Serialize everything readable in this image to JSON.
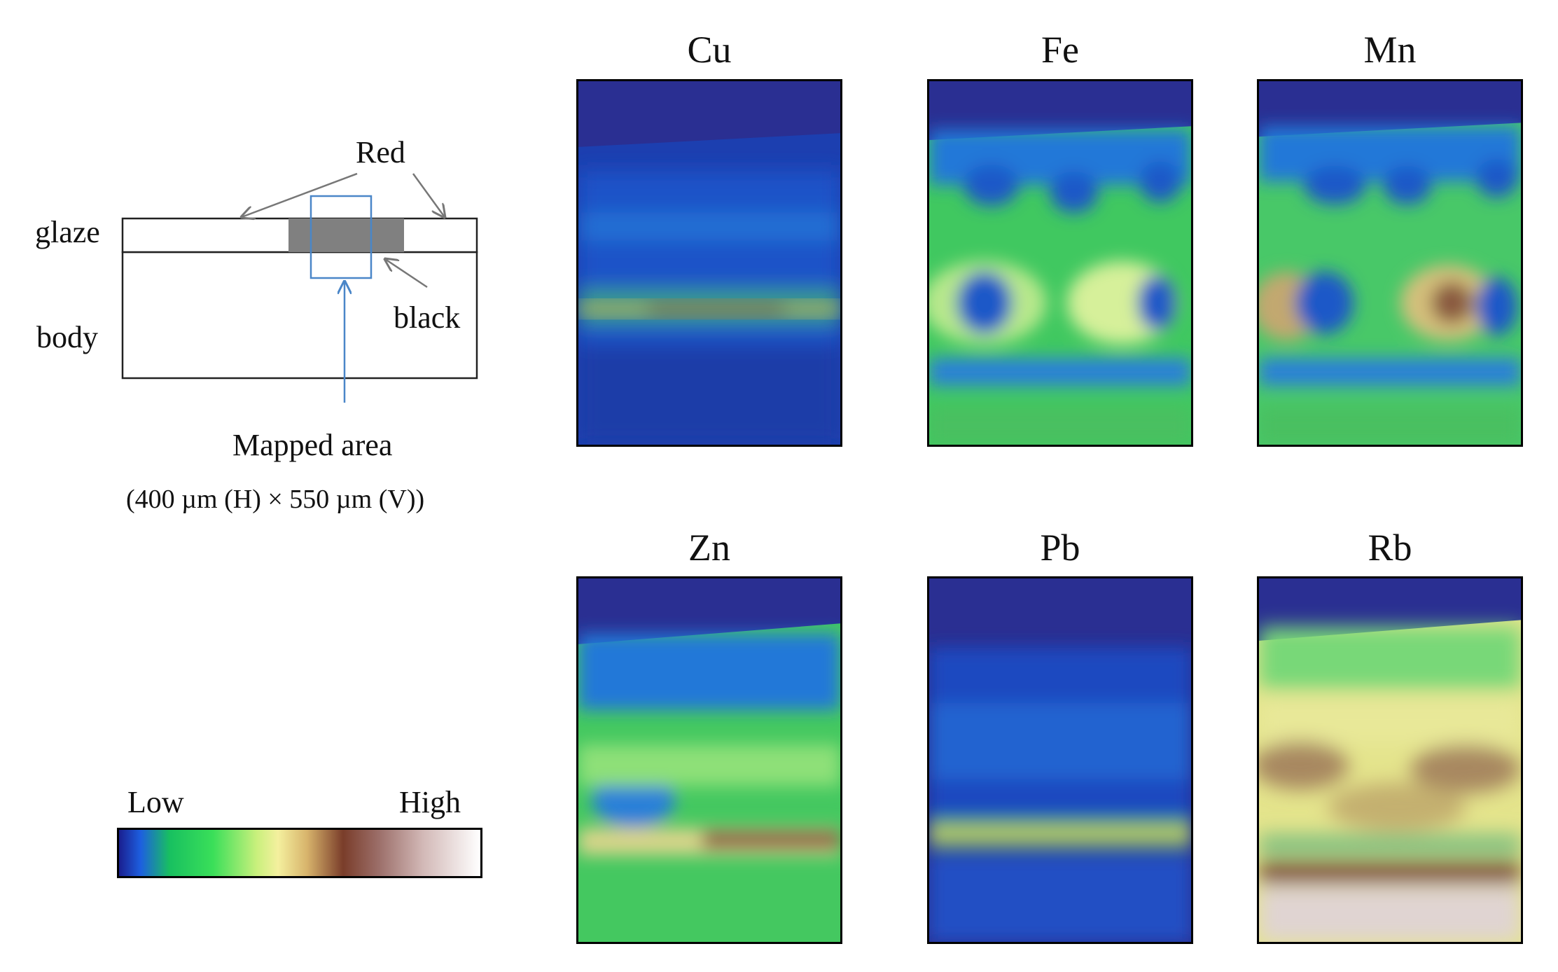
{
  "schematic": {
    "glaze_label": "glaze",
    "body_label": "body",
    "red_label": "Red",
    "black_label": "black",
    "mapped_area_label": "Mapped area",
    "dimensions_label": "(400  µm  (H) × 550  µm  (V))"
  },
  "legend": {
    "low_label": "Low",
    "high_label": "High"
  },
  "maps": [
    {
      "element": "Cu"
    },
    {
      "element": "Fe"
    },
    {
      "element": "Mn"
    },
    {
      "element": "Zn"
    },
    {
      "element": "Pb"
    },
    {
      "element": "Rb"
    }
  ],
  "colors": {
    "schematic_outline": "#222222",
    "black_layer": "#808080",
    "mapped_box": "#4a86c8",
    "background_navy": "#2a2f92"
  }
}
